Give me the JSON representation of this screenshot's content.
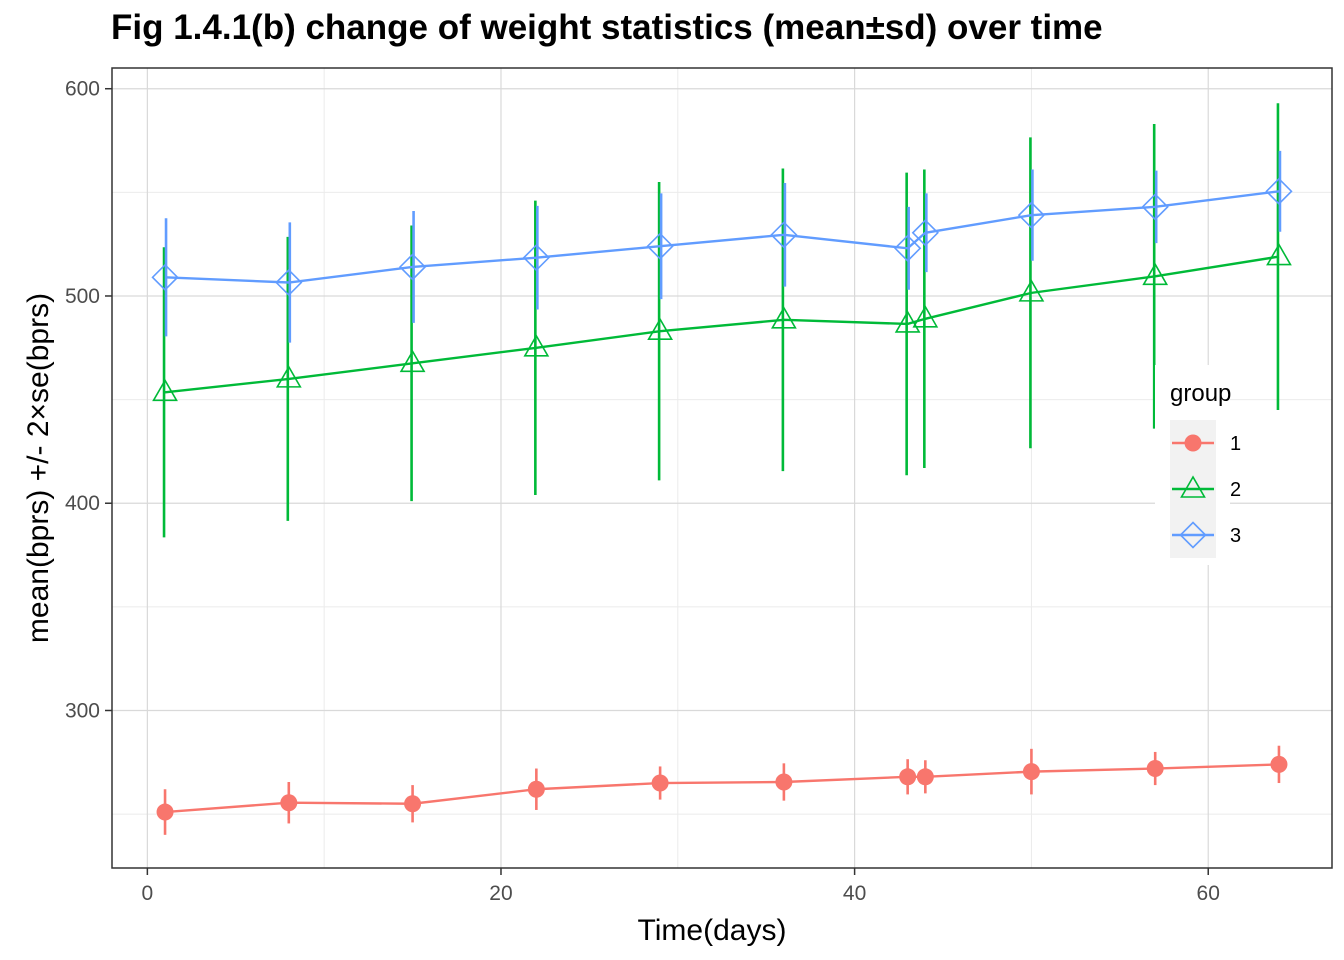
{
  "chart_data": {
    "type": "line",
    "title": "Fig 1.4.1(b) change of weight statistics (mean±sd) over time",
    "xlabel": "Time(days)",
    "ylabel": "mean(bprs) +/- 2×se(bprs)",
    "xlim": [
      -2,
      67
    ],
    "ylim": [
      224,
      610
    ],
    "x_ticks": [
      0,
      20,
      40,
      60
    ],
    "y_ticks": [
      300,
      400,
      500,
      600
    ],
    "grid": true,
    "legend": {
      "title": "group",
      "position": "right"
    },
    "series": [
      {
        "name": "1",
        "color": "#F8766D",
        "marker": "circle",
        "x": [
          1,
          8,
          15,
          22,
          29,
          36,
          43,
          44,
          50,
          57,
          64
        ],
        "y": [
          251,
          255.5,
          255,
          262,
          265,
          265.5,
          268,
          268,
          270.5,
          272,
          274
        ],
        "error": [
          11,
          10,
          9,
          10,
          8,
          9,
          8.5,
          8,
          11,
          8,
          9
        ]
      },
      {
        "name": "2",
        "color": "#00BA38",
        "marker": "triangle",
        "x": [
          1,
          8,
          15,
          22,
          29,
          36,
          43,
          44,
          50,
          57,
          64
        ],
        "y": [
          453.5,
          460,
          467.5,
          475,
          483,
          488.5,
          486.5,
          489,
          501.5,
          509.5,
          519
        ],
        "error": [
          70,
          68.5,
          66.5,
          71,
          72,
          73,
          73,
          72,
          75,
          73.5,
          74
        ]
      },
      {
        "name": "3",
        "color": "#619CFF",
        "marker": "diamond",
        "x": [
          1,
          8,
          15,
          22,
          29,
          36,
          43,
          44,
          50,
          57,
          64
        ],
        "y": [
          509,
          506.5,
          514,
          518.5,
          524,
          529.5,
          523,
          530.5,
          539,
          543,
          550.5
        ],
        "error": [
          28.5,
          29,
          27,
          25,
          25.5,
          25,
          20,
          19,
          22,
          17.5,
          19.5
        ]
      }
    ]
  }
}
